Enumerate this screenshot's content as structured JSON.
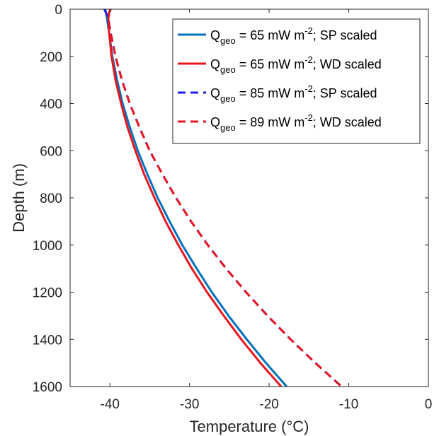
{
  "chart_data": {
    "type": "line",
    "xlabel": "Temperature (°C)",
    "ylabel": "Depth (m)",
    "xlim": [
      -45,
      0
    ],
    "ylim": [
      0,
      1600
    ],
    "y_reversed": true,
    "xticks": [
      -40,
      -30,
      -20,
      -10,
      0
    ],
    "yticks": [
      0,
      200,
      400,
      600,
      800,
      1000,
      1200,
      1400,
      1600
    ],
    "grid": false,
    "legend_position": "top-right",
    "series": [
      {
        "name": {
          "pre": "Q",
          "sub": "geo",
          "mid": " = 65 mW m",
          "sup": "-2",
          "post": "; SP scaled"
        },
        "color": "#0072BD",
        "dash": "solid",
        "points": [
          [
            -40.6,
            0
          ],
          [
            -40.4,
            30
          ],
          [
            -40.1,
            100
          ],
          [
            -39.7,
            200
          ],
          [
            -39.1,
            300
          ],
          [
            -38.4,
            400
          ],
          [
            -37.5,
            500
          ],
          [
            -36.5,
            600
          ],
          [
            -35.3,
            700
          ],
          [
            -34.0,
            800
          ],
          [
            -32.5,
            900
          ],
          [
            -30.9,
            1000
          ],
          [
            -29.1,
            1100
          ],
          [
            -27.2,
            1200
          ],
          [
            -25.1,
            1300
          ],
          [
            -22.8,
            1400
          ],
          [
            -20.4,
            1500
          ],
          [
            -17.8,
            1600
          ]
        ]
      },
      {
        "name": {
          "pre": "Q",
          "sub": "geo",
          "mid": " = 65 mW m",
          "sup": "-2",
          "post": "; WD scaled"
        },
        "color": "#E8161F",
        "dash": "solid",
        "points": [
          [
            -39.9,
            0
          ],
          [
            -40.1,
            15
          ],
          [
            -40.2,
            40
          ],
          [
            -40.1,
            100
          ],
          [
            -39.8,
            200
          ],
          [
            -39.3,
            300
          ],
          [
            -38.6,
            400
          ],
          [
            -37.8,
            500
          ],
          [
            -36.8,
            600
          ],
          [
            -35.7,
            700
          ],
          [
            -34.4,
            800
          ],
          [
            -33.0,
            900
          ],
          [
            -31.4,
            1000
          ],
          [
            -29.7,
            1100
          ],
          [
            -27.8,
            1200
          ],
          [
            -25.7,
            1300
          ],
          [
            -23.5,
            1400
          ],
          [
            -21.1,
            1500
          ],
          [
            -18.5,
            1600
          ]
        ]
      },
      {
        "name": {
          "pre": "Q",
          "sub": "geo",
          "mid": " = 85 mW m",
          "sup": "-2",
          "post": "; SP scaled"
        },
        "color": "#1F1FE6",
        "dash": "dashed",
        "points": [
          [
            -40.7,
            0
          ],
          [
            -40.3,
            30
          ],
          [
            -39.9,
            100
          ],
          [
            -39.3,
            200
          ],
          [
            -38.5,
            300
          ],
          [
            -37.5,
            400
          ],
          [
            -36.3,
            500
          ],
          [
            -35.0,
            600
          ],
          [
            -33.4,
            700
          ],
          [
            -31.7,
            800
          ],
          [
            -29.8,
            900
          ],
          [
            -27.7,
            1000
          ],
          [
            -25.4,
            1100
          ],
          [
            -22.9,
            1200
          ],
          [
            -20.2,
            1300
          ],
          [
            -17.3,
            1400
          ],
          [
            -14.2,
            1500
          ],
          [
            -10.9,
            1600
          ]
        ]
      },
      {
        "name": {
          "pre": "Q",
          "sub": "geo",
          "mid": " = 89 mW m",
          "sup": "-2",
          "post": "; WD scaled"
        },
        "color": "#E8161F",
        "dash": "dashed",
        "points": [
          [
            -39.9,
            0
          ],
          [
            -40.1,
            15
          ],
          [
            -40.2,
            40
          ],
          [
            -39.9,
            100
          ],
          [
            -39.3,
            200
          ],
          [
            -38.5,
            300
          ],
          [
            -37.5,
            400
          ],
          [
            -36.3,
            500
          ],
          [
            -35.0,
            600
          ],
          [
            -33.4,
            700
          ],
          [
            -31.7,
            800
          ],
          [
            -29.8,
            900
          ],
          [
            -27.7,
            1000
          ],
          [
            -25.4,
            1100
          ],
          [
            -22.9,
            1200
          ],
          [
            -20.2,
            1300
          ],
          [
            -17.3,
            1400
          ],
          [
            -14.2,
            1500
          ],
          [
            -10.9,
            1600
          ]
        ]
      }
    ]
  }
}
